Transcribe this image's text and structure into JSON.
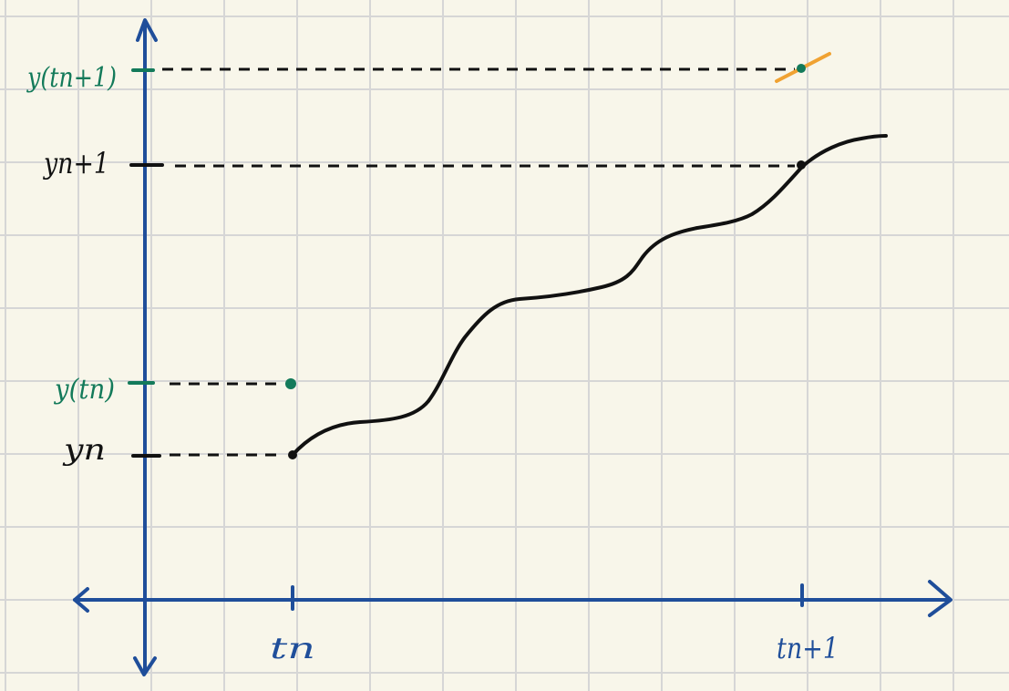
{
  "labels": {
    "y_exact_next": "y(tn+1)",
    "y_next": "yn+1",
    "y_exact_current": "y(tn)",
    "y_current": "yn",
    "t_current": "tn",
    "t_next": "tn+1"
  },
  "colors": {
    "background": "#f8f6ea",
    "grid": "#d6d6d6",
    "axis": "#1f4e9a",
    "curve": "#111111",
    "exact": "#137a5a",
    "tangent": "#f0a232"
  }
}
